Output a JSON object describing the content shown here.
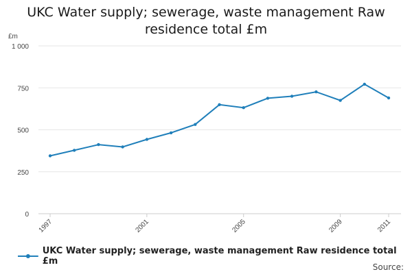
{
  "chart_data": {
    "type": "line",
    "title": "UKC Water supply; sewerage, waste management Raw residence total £m",
    "ylabel": "£m",
    "xlabel": "",
    "ylim": [
      0,
      1000
    ],
    "yticks": [
      0,
      250,
      500,
      750,
      1000
    ],
    "ytick_labels": [
      "0",
      "250",
      "500",
      "750",
      "1 000"
    ],
    "xlim": [
      1997,
      2011
    ],
    "xticks": [
      1997,
      2001,
      2005,
      2009,
      2011
    ],
    "xtick_labels": [
      "1997",
      "2001",
      "2005",
      "2009",
      "2011"
    ],
    "x": [
      1997,
      1998,
      1999,
      2000,
      2001,
      2002,
      2003,
      2004,
      2005,
      2006,
      2007,
      2008,
      2009,
      2010,
      2011
    ],
    "series": [
      {
        "name": "UKC Water supply; sewerage, waste management Raw residence total £m",
        "color": "#1f7fba",
        "values": [
          345,
          378,
          412,
          398,
          443,
          482,
          532,
          650,
          632,
          688,
          700,
          726,
          675,
          772,
          690
        ]
      }
    ],
    "grid": true,
    "legend": "bottom-left"
  },
  "footer": {
    "source": "Source:"
  },
  "colors": {
    "line": "#1f7fba",
    "grid": "#e6e6e6",
    "axis": "#cccccc"
  }
}
